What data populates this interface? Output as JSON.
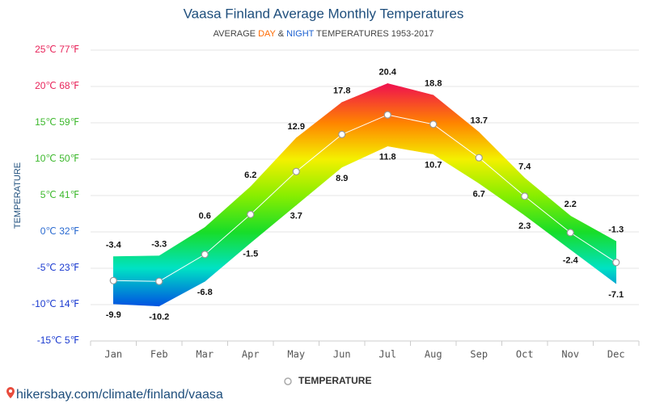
{
  "chart_data": {
    "type": "range-line",
    "title": "Vaasa Finland Average Monthly Temperatures",
    "subtitle": [
      "AVERAGE",
      "DAY",
      "&",
      "NIGHT",
      "TEMPERATURES 1953-2017"
    ],
    "y_label": "TEMPERATURE",
    "categories": [
      "Jan",
      "Feb",
      "Mar",
      "Apr",
      "May",
      "Jun",
      "Jul",
      "Aug",
      "Sep",
      "Oct",
      "Nov",
      "Dec"
    ],
    "range": {
      "high": [
        -3.4,
        -3.3,
        0.6,
        6.2,
        12.9,
        17.8,
        20.4,
        18.8,
        13.7,
        7.4,
        2.2,
        -1.3
      ],
      "low": [
        -9.9,
        -10.2,
        -6.8,
        -1.5,
        3.7,
        8.9,
        11.8,
        10.7,
        6.7,
        2.3,
        -2.4,
        -7.1
      ]
    },
    "series": [
      {
        "name": "TEMPERATURE",
        "color": "#ffffff",
        "values": [
          -6.7,
          -6.8,
          -3.1,
          2.4,
          8.3,
          13.4,
          16.1,
          14.8,
          10.2,
          4.9,
          -0.1,
          -4.2
        ]
      }
    ],
    "ylim": [
      -15,
      25
    ],
    "yticks": [
      {
        "value": -15,
        "label": "-15℃ 5℉"
      },
      {
        "value": -10,
        "label": "-10℃ 14℉"
      },
      {
        "value": -5,
        "label": "-5℃ 23℉"
      },
      {
        "value": 0,
        "label": "0℃ 32℉"
      },
      {
        "value": 5,
        "label": "5℃ 41℉"
      },
      {
        "value": 10,
        "label": "10℃ 50℉"
      },
      {
        "value": 15,
        "label": "15℃ 59℉"
      },
      {
        "value": 20,
        "label": "20℃ 68℉"
      },
      {
        "value": 25,
        "label": "25℃ 77℉"
      }
    ],
    "grid": true,
    "legend": "bottom",
    "footer": "hikersbay.com/climate/finland/vaasa"
  }
}
